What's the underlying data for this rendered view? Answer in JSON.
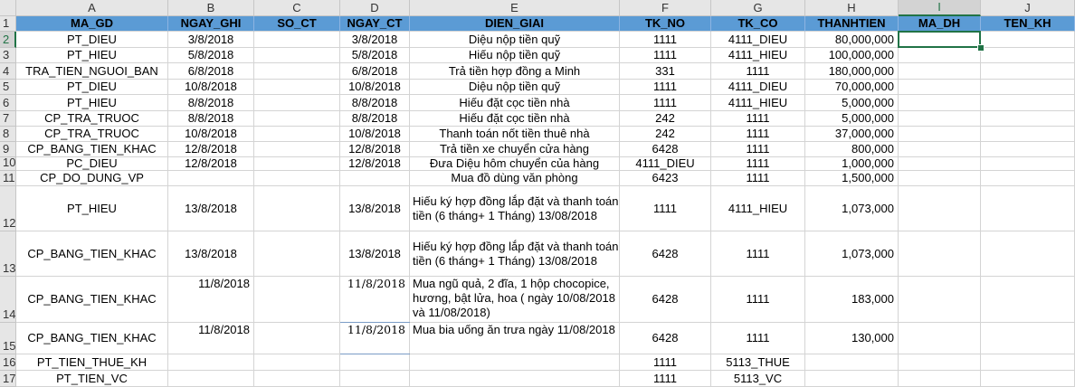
{
  "columns": [
    "A",
    "B",
    "C",
    "D",
    "E",
    "F",
    "G",
    "H",
    "I",
    "J"
  ],
  "active_column": "I",
  "active_row": "2",
  "header_row": {
    "row_label": "1",
    "cells": [
      "MA_GD",
      "NGAY_GHI",
      "SO_CT",
      "NGAY_CT",
      "DIEN_GIAI",
      "TK_NO",
      "TK_CO",
      "THANHTIEN",
      "MA_DH",
      "TEN_KH"
    ]
  },
  "rows": [
    {
      "label": "2",
      "cells": [
        "PT_DIEU",
        "3/8/2018",
        "",
        "3/8/2018",
        "Diệu nộp tiền quỹ",
        "1111",
        "4111_DIEU",
        "80,000,000",
        "",
        ""
      ]
    },
    {
      "label": "3",
      "cells": [
        "PT_HIEU",
        "5/8/2018",
        "",
        "5/8/2018",
        "Hiếu nộp tiền quỹ",
        "1111",
        "4111_HIEU",
        "100,000,000",
        "",
        ""
      ]
    },
    {
      "label": "4",
      "cells": [
        "TRA_TIEN_NGUOI_BAN",
        "6/8/2018",
        "",
        "6/8/2018",
        "Trả tiền hợp đồng a Minh",
        "331",
        "1111",
        "180,000,000",
        "",
        ""
      ]
    },
    {
      "label": "5",
      "cells": [
        "PT_DIEU",
        "10/8/2018",
        "",
        "10/8/2018",
        "Diệu nộp tiền quỹ",
        "1111",
        "4111_DIEU",
        "70,000,000",
        "",
        ""
      ]
    },
    {
      "label": "6",
      "cells": [
        "PT_HIEU",
        "8/8/2018",
        "",
        "8/8/2018",
        "Hiếu đặt cọc tiền nhà",
        "1111",
        "4111_HIEU",
        "5,000,000",
        "",
        ""
      ]
    },
    {
      "label": "7",
      "cells": [
        "CP_TRA_TRUOC",
        "8/8/2018",
        "",
        "8/8/2018",
        "Hiếu đặt cọc tiền nhà",
        "242",
        "1111",
        "5,000,000",
        "",
        ""
      ]
    },
    {
      "label": "8",
      "cells": [
        "CP_TRA_TRUOC",
        "10/8/2018",
        "",
        "10/8/2018",
        "Thanh toán nốt tiền thuê nhà",
        "242",
        "1111",
        "37,000,000",
        "",
        ""
      ]
    },
    {
      "label": "9",
      "cells": [
        "CP_BANG_TIEN_KHAC",
        "12/8/2018",
        "",
        "12/8/2018",
        "Trả tiền xe chuyển cửa hàng",
        "6428",
        "1111",
        "800,000",
        "",
        ""
      ]
    },
    {
      "label": "10",
      "cells": [
        "PC_DIEU",
        "12/8/2018",
        "",
        "12/8/2018",
        "Đưa Diệu hôm chuyển của hàng",
        "4111_DIEU",
        "1111",
        "1,000,000",
        "",
        ""
      ]
    },
    {
      "label": "11",
      "cells": [
        "CP_DO_DUNG_VP",
        "",
        "",
        "",
        "Mua đồ dùng văn phòng",
        "6423",
        "1111",
        "1,500,000",
        "",
        ""
      ]
    },
    {
      "label": "12",
      "cells": [
        "PT_HIEU",
        "13/8/2018",
        "",
        "13/8/2018",
        "Hiếu ký hợp đồng lắp đặt và thanh toán tiền (6 tháng+ 1 Tháng) 13/08/2018",
        "1111",
        "4111_HIEU",
        "1,073,000",
        "",
        ""
      ]
    },
    {
      "label": "13",
      "cells": [
        "CP_BANG_TIEN_KHAC",
        "13/8/2018",
        "",
        "13/8/2018",
        "Hiếu ký hợp đồng lắp đặt và thanh toán tiền (6 tháng+ 1 Tháng) 13/08/2018",
        "6428",
        "1111",
        "1,073,000",
        "",
        ""
      ]
    },
    {
      "label": "14",
      "cells": [
        "CP_BANG_TIEN_KHAC",
        "11/8/2018",
        "",
        "11/8/2018",
        "Mua ngũ quả, 2 đĩa, 1 hộp chocopice, hương, bật lửa, hoa ( ngày 10/08/2018 và 11/08/2018)",
        "6428",
        "1111",
        "183,000",
        "",
        ""
      ]
    },
    {
      "label": "15",
      "cells": [
        "CP_BANG_TIEN_KHAC",
        "11/8/2018",
        "",
        "11/8/2018",
        "Mua bia uống ăn trưa ngày 11/08/2018",
        "6428",
        "1111",
        "130,000",
        "",
        ""
      ]
    },
    {
      "label": "16",
      "cells": [
        "PT_TIEN_THUE_KH",
        "",
        "",
        "",
        "",
        "1111",
        "5113_THUE",
        "",
        "",
        ""
      ]
    },
    {
      "label": "17",
      "cells": [
        "PT_TIEN_VC",
        "",
        "",
        "",
        "",
        "1111",
        "5113_VC",
        "",
        "",
        ""
      ]
    }
  ],
  "colors": {
    "header_fill": "#5b9bd5",
    "selection": "#217346",
    "gridline": "#d4d4d4",
    "heading_bg": "#e6e6e6"
  }
}
